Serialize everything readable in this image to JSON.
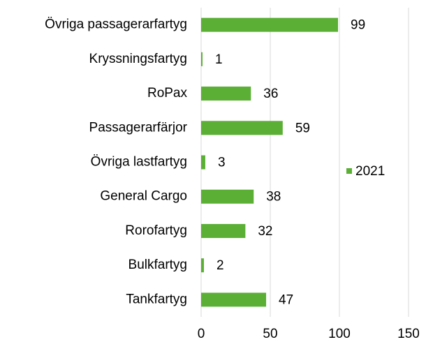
{
  "chart_data": {
    "type": "bar",
    "orientation": "horizontal",
    "categories": [
      "Övriga passagerarfartyg",
      "Kryssningsfartyg",
      "RoPax",
      "Passagerarfärjor",
      "Övriga lastfartyg",
      "General Cargo",
      "Rorofartyg",
      "Bulkfartyg",
      "Tankfartyg"
    ],
    "series": [
      {
        "name": "2021",
        "color": "#5aaf34",
        "values": [
          99,
          1,
          36,
          59,
          3,
          38,
          32,
          2,
          47
        ]
      }
    ],
    "xlim": [
      0,
      150
    ],
    "xticks": [
      0,
      50,
      100,
      150
    ],
    "grid": true,
    "legend": "right"
  }
}
